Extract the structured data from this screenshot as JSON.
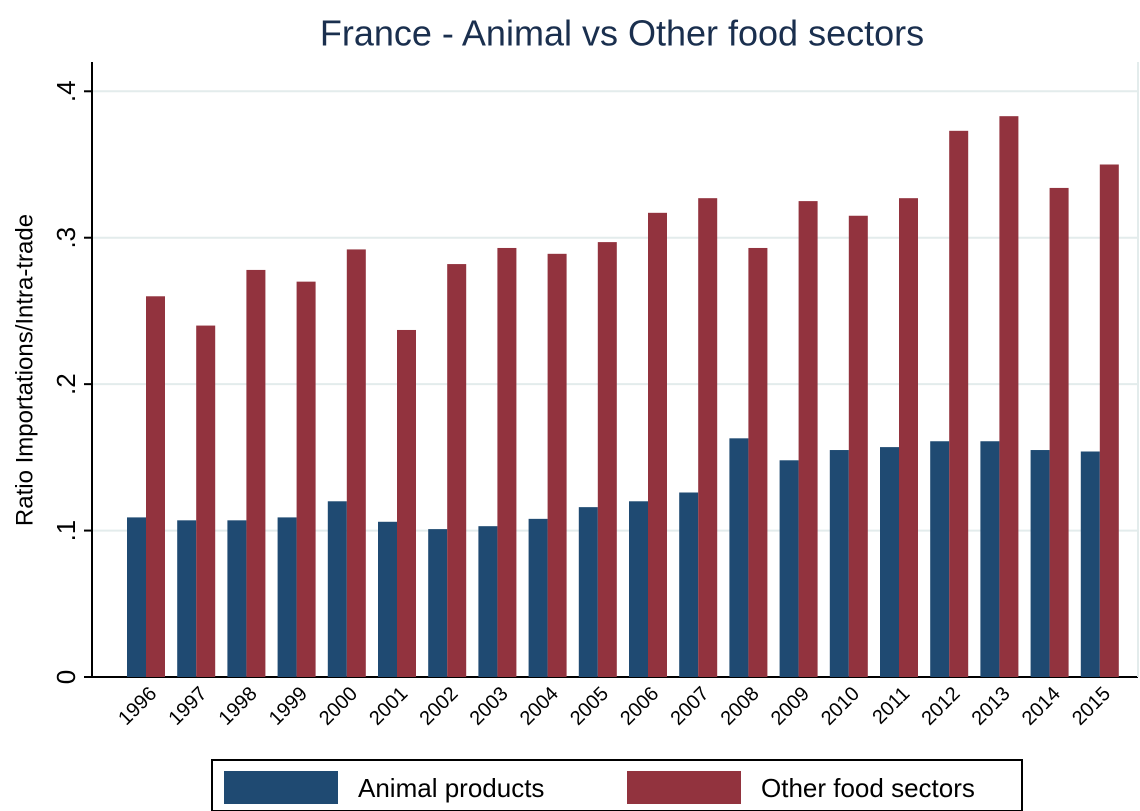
{
  "chart_data": {
    "type": "bar",
    "title": "France - Animal vs Other food sectors",
    "y_label": "Ratio Importations/Intra-trade",
    "categories": [
      "1996",
      "1997",
      "1998",
      "1999",
      "2000",
      "2001",
      "2002",
      "2003",
      "2004",
      "2005",
      "2006",
      "2007",
      "2008",
      "2009",
      "2010",
      "2011",
      "2012",
      "2013",
      "2014",
      "2015"
    ],
    "series": [
      {
        "name": "Animal products",
        "color": "#1f4a72",
        "values": [
          0.109,
          0.107,
          0.107,
          0.109,
          0.12,
          0.106,
          0.101,
          0.103,
          0.108,
          0.116,
          0.12,
          0.126,
          0.163,
          0.148,
          0.155,
          0.157,
          0.161,
          0.161,
          0.155,
          0.154
        ]
      },
      {
        "name": "Other food sectors",
        "color": "#92333e",
        "values": [
          0.26,
          0.24,
          0.278,
          0.27,
          0.292,
          0.237,
          0.282,
          0.293,
          0.289,
          0.297,
          0.317,
          0.327,
          0.293,
          0.325,
          0.315,
          0.327,
          0.373,
          0.383,
          0.334,
          0.35
        ]
      }
    ],
    "ylim": [
      0,
      0.42
    ],
    "yticks": [
      0,
      {
        "value": 0.1,
        "label": ".1"
      },
      {
        "value": 0.2,
        "label": ".2"
      },
      {
        "value": 0.3,
        "label": ".3"
      },
      {
        "value": 0.4,
        "label": ".4"
      }
    ],
    "grid": true,
    "legend": "bottom"
  }
}
